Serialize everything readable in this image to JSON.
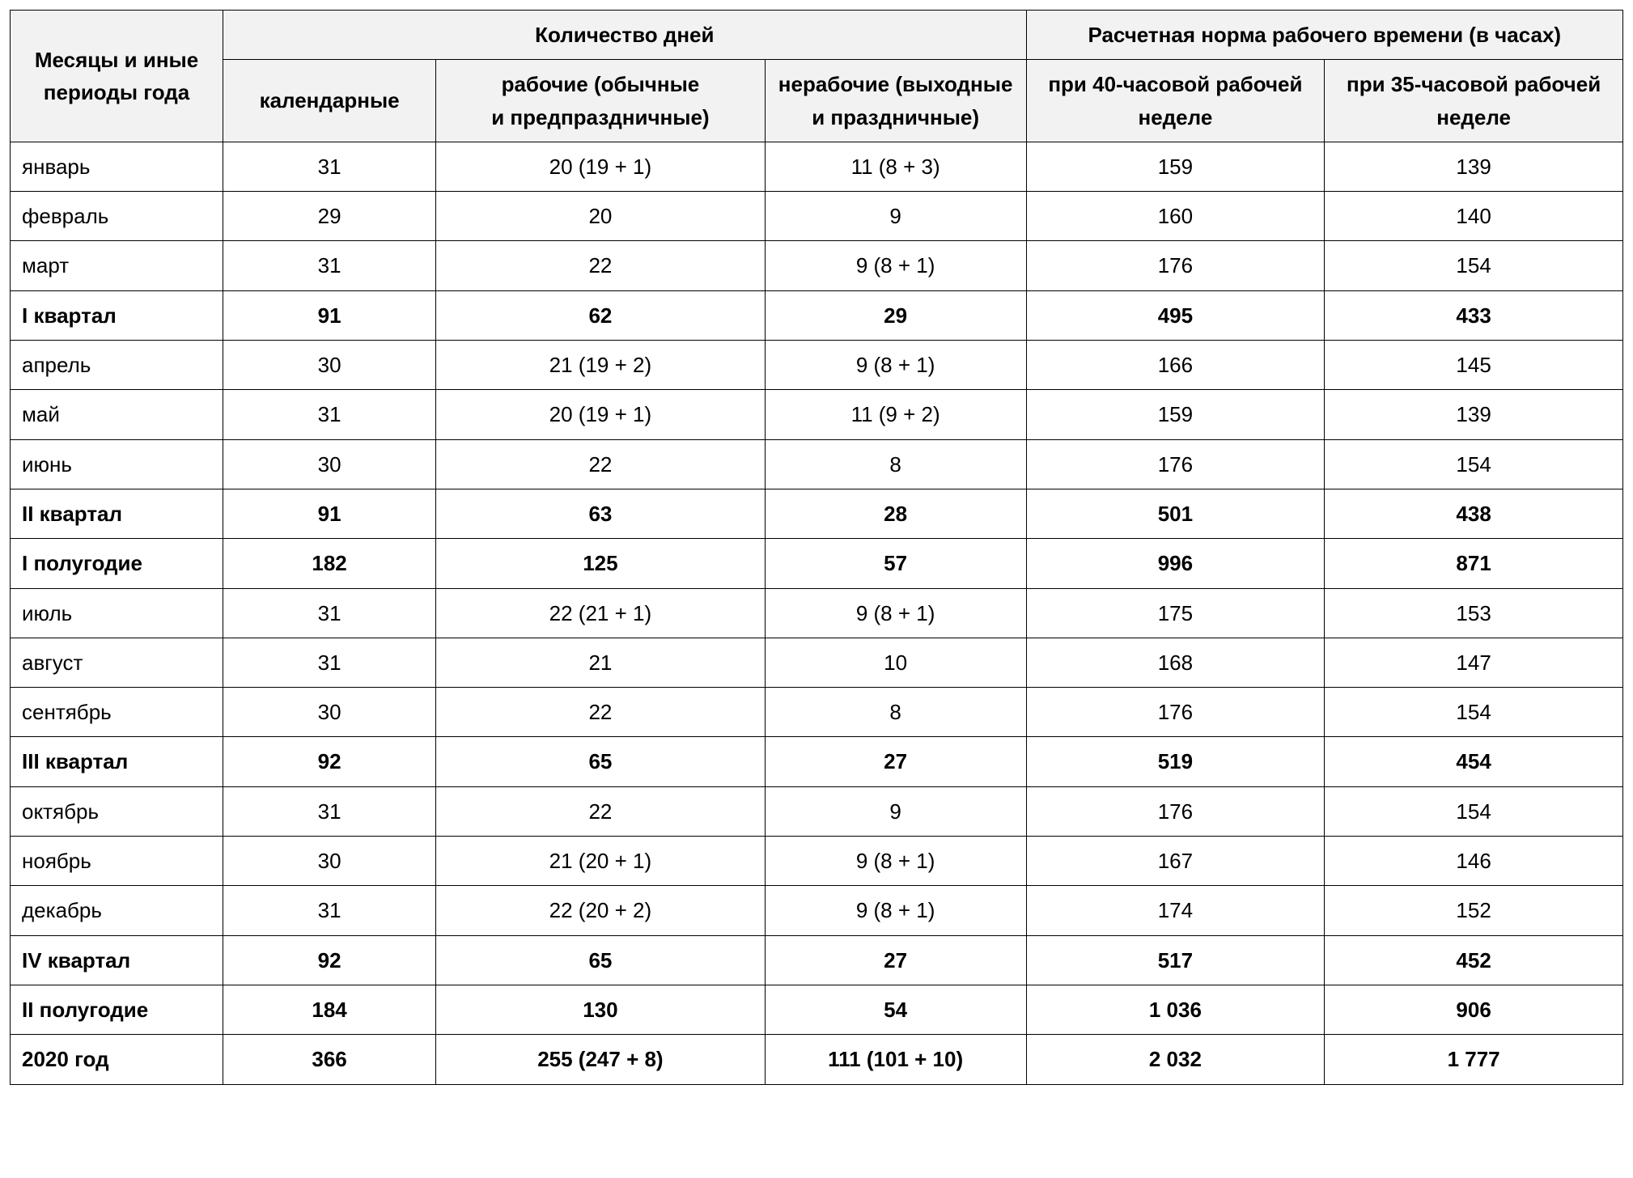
{
  "table": {
    "type": "table",
    "background_color": "#ffffff",
    "header_background": "#f2f2f2",
    "border_color": "#000000",
    "border_width": 1.5,
    "font_family": "Arial, Helvetica, sans-serif",
    "header_fontsize": 26,
    "cell_fontsize": 26,
    "line_height": 1.55,
    "columns": [
      {
        "key": "period",
        "width_pct": 13.2,
        "align": "left"
      },
      {
        "key": "calendar",
        "width_pct": 13.2,
        "align": "center"
      },
      {
        "key": "working",
        "width_pct": 20.4,
        "align": "center"
      },
      {
        "key": "nonwork",
        "width_pct": 16.2,
        "align": "center"
      },
      {
        "key": "h40",
        "width_pct": 18.5,
        "align": "center"
      },
      {
        "key": "h35",
        "width_pct": 18.5,
        "align": "center"
      }
    ],
    "header": {
      "period_label": "Месяцы и иные периоды года",
      "days_group_label": "Количество дней",
      "hours_group_label": "Расчетная норма рабочего времени (в часах)",
      "calendar_label": "календарные",
      "working_label": "рабочие (обычные и предпраздничные)",
      "nonwork_label": "нерабочие (выходные и праздничные)",
      "h40_label": "при 40-часовой рабочей неделе",
      "h35_label": "при 35-часовой рабочей неделе"
    },
    "rows": [
      {
        "period": "январь",
        "calendar": "31",
        "working": "20 (19 + 1)",
        "nonwork": "11 (8 + 3)",
        "h40": "159",
        "h35": "139",
        "bold": false
      },
      {
        "period": "февраль",
        "calendar": "29",
        "working": "20",
        "nonwork": "9",
        "h40": "160",
        "h35": "140",
        "bold": false
      },
      {
        "period": "март",
        "calendar": "31",
        "working": "22",
        "nonwork": "9 (8 + 1)",
        "h40": "176",
        "h35": "154",
        "bold": false
      },
      {
        "period": "I квартал",
        "calendar": "91",
        "working": "62",
        "nonwork": "29",
        "h40": "495",
        "h35": "433",
        "bold": true
      },
      {
        "period": "апрель",
        "calendar": "30",
        "working": "21 (19 + 2)",
        "nonwork": "9 (8 + 1)",
        "h40": "166",
        "h35": "145",
        "bold": false
      },
      {
        "period": "май",
        "calendar": "31",
        "working": "20 (19 + 1)",
        "nonwork": "11 (9 + 2)",
        "h40": "159",
        "h35": "139",
        "bold": false
      },
      {
        "period": "июнь",
        "calendar": "30",
        "working": "22",
        "nonwork": "8",
        "h40": "176",
        "h35": "154",
        "bold": false
      },
      {
        "period": "II квартал",
        "calendar": "91",
        "working": "63",
        "nonwork": "28",
        "h40": "501",
        "h35": "438",
        "bold": true
      },
      {
        "period": "I полугодие",
        "calendar": "182",
        "working": "125",
        "nonwork": "57",
        "h40": "996",
        "h35": "871",
        "bold": true
      },
      {
        "period": "июль",
        "calendar": "31",
        "working": "22 (21 + 1)",
        "nonwork": "9 (8 + 1)",
        "h40": "175",
        "h35": "153",
        "bold": false
      },
      {
        "period": "август",
        "calendar": "31",
        "working": "21",
        "nonwork": "10",
        "h40": "168",
        "h35": "147",
        "bold": false
      },
      {
        "period": "сентябрь",
        "calendar": "30",
        "working": "22",
        "nonwork": "8",
        "h40": "176",
        "h35": "154",
        "bold": false
      },
      {
        "period": "III квартал",
        "calendar": "92",
        "working": "65",
        "nonwork": "27",
        "h40": "519",
        "h35": "454",
        "bold": true
      },
      {
        "period": "октябрь",
        "calendar": "31",
        "working": "22",
        "nonwork": "9",
        "h40": "176",
        "h35": "154",
        "bold": false
      },
      {
        "period": "ноябрь",
        "calendar": "30",
        "working": "21 (20 + 1)",
        "nonwork": "9 (8 + 1)",
        "h40": "167",
        "h35": "146",
        "bold": false
      },
      {
        "period": "декабрь",
        "calendar": "31",
        "working": "22 (20 + 2)",
        "nonwork": "9 (8 + 1)",
        "h40": "174",
        "h35": "152",
        "bold": false
      },
      {
        "period": "IV квартал",
        "calendar": "92",
        "working": "65",
        "nonwork": "27",
        "h40": "517",
        "h35": "452",
        "bold": true
      },
      {
        "period": "II полугодие",
        "calendar": "184",
        "working": "130",
        "nonwork": "54",
        "h40": "1 036",
        "h35": "906",
        "bold": true
      },
      {
        "period": "2020 год",
        "calendar": "366",
        "working": "255 (247 + 8)",
        "nonwork": "111 (101 + 10)",
        "h40": "2 032",
        "h35": "1 777",
        "bold": true
      }
    ]
  }
}
